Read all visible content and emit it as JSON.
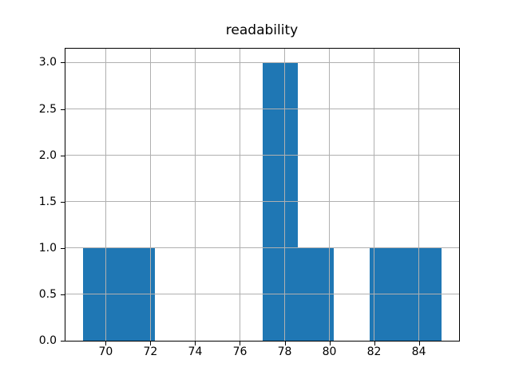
{
  "figure": {
    "background": "#ffffff"
  },
  "chart_data": {
    "type": "bar",
    "subtype": "histogram",
    "title": "readability",
    "xlabel": "",
    "ylabel": "",
    "bin_edges": [
      69.0,
      70.6,
      72.2,
      73.8,
      75.4,
      77.0,
      78.6,
      80.2,
      81.8,
      83.4,
      85.0
    ],
    "counts": [
      1,
      1,
      0,
      0,
      0,
      3,
      1,
      0,
      1,
      1
    ],
    "xticks": [
      70,
      72,
      74,
      76,
      78,
      80,
      82,
      84
    ],
    "xtick_labels": [
      "70",
      "72",
      "74",
      "76",
      "78",
      "80",
      "82",
      "84"
    ],
    "yticks": [
      0.0,
      0.5,
      1.0,
      1.5,
      2.0,
      2.5,
      3.0
    ],
    "ytick_labels": [
      "0.0",
      "0.5",
      "1.0",
      "1.5",
      "2.0",
      "2.5",
      "3.0"
    ],
    "xlim": [
      68.2,
      85.8
    ],
    "ylim": [
      0,
      3.15
    ],
    "grid": true,
    "grid_over_bars": true,
    "legend": null,
    "colors": {
      "bar": "#1f77b4",
      "grid": "#b0b0b0",
      "spine": "#000000",
      "text": "#000000",
      "background": "#ffffff"
    }
  }
}
